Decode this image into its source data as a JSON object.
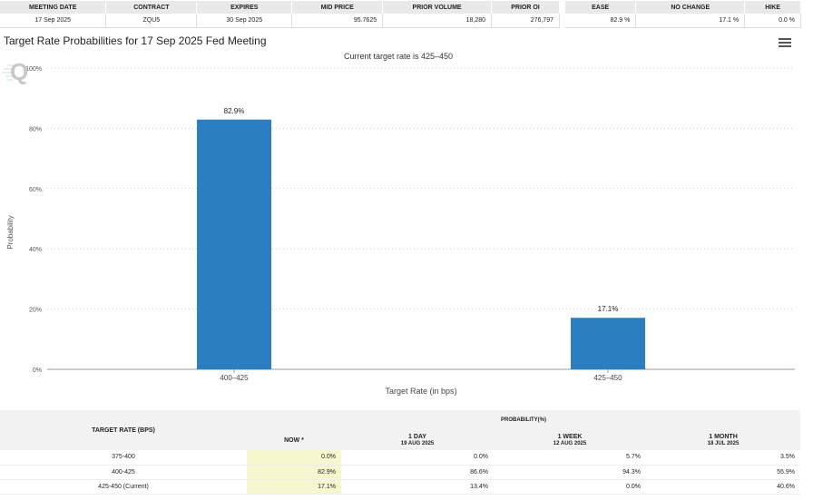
{
  "top_table": {
    "headers": [
      "MEETING DATE",
      "CONTRACT",
      "EXPIRES",
      "MID PRICE",
      "PRIOR VOLUME",
      "PRIOR OI"
    ],
    "row": [
      "17 Sep 2025",
      "ZQU5",
      "30 Sep 2025",
      "95.7625",
      "18,280",
      "276,797"
    ],
    "prob_headers": [
      "EASE",
      "NO CHANGE",
      "HIKE"
    ],
    "prob_row": [
      "82.9 %",
      "17.1 %",
      "0.0 %"
    ]
  },
  "chart_title": "Target Rate Probabilities for 17 Sep 2025 Fed Meeting",
  "chart_data": {
    "type": "bar",
    "title": "Target Rate Probabilities for 17 Sep 2025 Fed Meeting",
    "subtitle": "Current target rate is 425–450",
    "xlabel": "Target Rate (in bps)",
    "ylabel": "Probability",
    "categories": [
      "400–425",
      "425–450"
    ],
    "values": [
      82.9,
      17.1
    ],
    "value_labels": [
      "82.9%",
      "17.1%"
    ],
    "ylim": [
      0,
      100
    ],
    "yticks": [
      0,
      20,
      40,
      60,
      80,
      100
    ],
    "ytick_labels": [
      "0%",
      "20%",
      "40%",
      "60%",
      "80%",
      "100%"
    ],
    "grid": true,
    "bar_color": "#2b7fc1"
  },
  "prob_table": {
    "left_header": "TARGET RATE (BPS)",
    "group_header": "PROBABILITY(%)",
    "columns": [
      {
        "label": "NOW *",
        "sub": ""
      },
      {
        "label": "1 DAY",
        "sub": "19 AUG 2025"
      },
      {
        "label": "1 WEEK",
        "sub": "12 AUG 2025"
      },
      {
        "label": "1 MONTH",
        "sub": "18 JUL 2025"
      }
    ],
    "rows": [
      {
        "rate": "375-400",
        "values": [
          "0.0%",
          "0.0%",
          "5.7%",
          "3.5%"
        ]
      },
      {
        "rate": "400-425",
        "values": [
          "82.9%",
          "86.6%",
          "94.3%",
          "55.9%"
        ]
      },
      {
        "rate": "425-450 (Current)",
        "values": [
          "17.1%",
          "13.4%",
          "0.0%",
          "40.6%"
        ]
      }
    ]
  }
}
